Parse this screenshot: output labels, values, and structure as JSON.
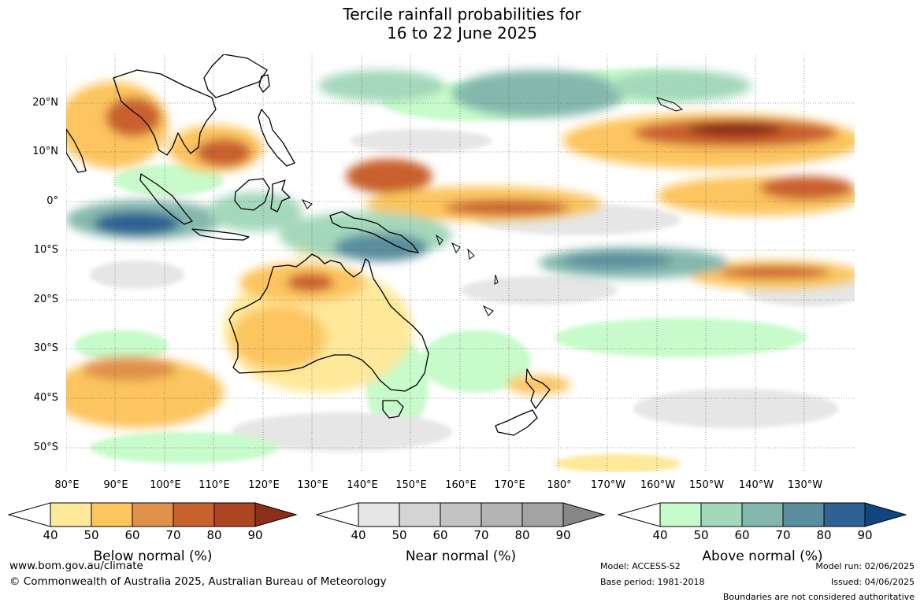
{
  "header": {
    "title_line1": "Tercile rainfall probabilities for",
    "title_line2": "16 to 22 June 2025"
  },
  "map": {
    "lat_labels": [
      "20°N",
      "10°N",
      "0°",
      "10°S",
      "20°S",
      "30°S",
      "40°S",
      "50°S"
    ],
    "lon_labels": [
      "80°E",
      "90°E",
      "100°E",
      "110°E",
      "120°E",
      "130°E",
      "140°E",
      "150°E",
      "160°E",
      "170°E",
      "180°",
      "170°W",
      "160°W",
      "150°W",
      "140°W",
      "130°W"
    ]
  },
  "legends": [
    {
      "title": "Below normal (%)",
      "ticks": [
        "40",
        "50",
        "60",
        "70",
        "80",
        "90"
      ],
      "colors": [
        "#fee89a",
        "#fcc55e",
        "#e0914a",
        "#c9612f",
        "#ad4422",
        "#8c2f19"
      ]
    },
    {
      "title": "Near normal (%)",
      "ticks": [
        "40",
        "50",
        "60",
        "70",
        "80",
        "90"
      ],
      "colors": [
        "#e6e6e6",
        "#d4d4d4",
        "#c3c3c3",
        "#b4b4b4",
        "#a3a3a3",
        "#878787"
      ]
    },
    {
      "title": "Above normal (%)",
      "ticks": [
        "40",
        "50",
        "60",
        "70",
        "80",
        "90"
      ],
      "colors": [
        "#c8fbcb",
        "#a4d8bb",
        "#84b8ad",
        "#5a8e9e",
        "#2f6193",
        "#104680"
      ]
    }
  ],
  "footer": {
    "website": "www.bom.gov.au/climate",
    "copyright": "© Commonwealth of Australia 2025, Australian Bureau of Meteorology",
    "model": "Model: ACCESS-S2",
    "base_period": "Base period: 1981-2018",
    "model_run": "Model run: 02/06/2025",
    "issued": "Issued: 04/06/2025",
    "disclaimer": "Boundaries are not considered authoritative"
  }
}
